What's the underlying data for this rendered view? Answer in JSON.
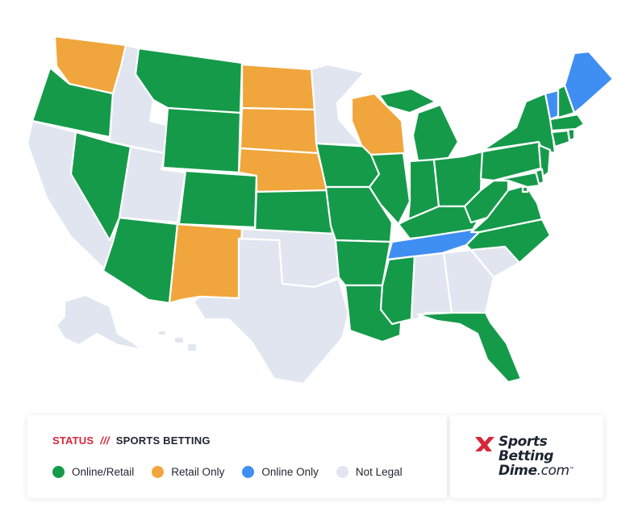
{
  "legend": {
    "status_label": "STATUS",
    "separator": "///",
    "topic_label": "SPORTS BETTING",
    "items": [
      {
        "label": "Online/Retail",
        "color": "#159a4a"
      },
      {
        "label": "Retail Only",
        "color": "#f0a63c"
      },
      {
        "label": "Online Only",
        "color": "#3f8ef2"
      },
      {
        "label": "Not Legal",
        "color": "#e0e5ef"
      }
    ]
  },
  "brand": {
    "line1": "Sports",
    "line2": "Betting",
    "line3": "Dime",
    "tld": ".com",
    "tm": "™",
    "accent_color": "#d8263b"
  },
  "map": {
    "colors": {
      "online_retail": "#159a4a",
      "retail_only": "#f0a63c",
      "online_only": "#3f8ef2",
      "not_legal": "#e0e5ef"
    },
    "states": [
      {
        "code": "WA",
        "status": "retail_only"
      },
      {
        "code": "OR",
        "status": "online_retail"
      },
      {
        "code": "CA",
        "status": "not_legal"
      },
      {
        "code": "ID",
        "status": "not_legal"
      },
      {
        "code": "NV",
        "status": "online_retail"
      },
      {
        "code": "UT",
        "status": "not_legal"
      },
      {
        "code": "AZ",
        "status": "online_retail"
      },
      {
        "code": "MT",
        "status": "online_retail"
      },
      {
        "code": "WY",
        "status": "online_retail"
      },
      {
        "code": "CO",
        "status": "online_retail"
      },
      {
        "code": "NM",
        "status": "retail_only"
      },
      {
        "code": "ND",
        "status": "retail_only"
      },
      {
        "code": "SD",
        "status": "retail_only"
      },
      {
        "code": "NE",
        "status": "retail_only"
      },
      {
        "code": "KS",
        "status": "online_retail"
      },
      {
        "code": "OK",
        "status": "not_legal"
      },
      {
        "code": "TX",
        "status": "not_legal"
      },
      {
        "code": "MN",
        "status": "not_legal"
      },
      {
        "code": "IA",
        "status": "online_retail"
      },
      {
        "code": "MO",
        "status": "online_retail"
      },
      {
        "code": "AR",
        "status": "online_retail"
      },
      {
        "code": "LA",
        "status": "online_retail"
      },
      {
        "code": "WI",
        "status": "retail_only"
      },
      {
        "code": "IL",
        "status": "online_retail"
      },
      {
        "code": "MI",
        "status": "online_retail"
      },
      {
        "code": "IN",
        "status": "online_retail"
      },
      {
        "code": "OH",
        "status": "online_retail"
      },
      {
        "code": "KY",
        "status": "online_retail"
      },
      {
        "code": "TN",
        "status": "online_only"
      },
      {
        "code": "MS",
        "status": "online_retail"
      },
      {
        "code": "AL",
        "status": "not_legal"
      },
      {
        "code": "GA",
        "status": "not_legal"
      },
      {
        "code": "FL",
        "status": "online_retail"
      },
      {
        "code": "SC",
        "status": "not_legal"
      },
      {
        "code": "NC",
        "status": "online_retail"
      },
      {
        "code": "VA",
        "status": "online_retail"
      },
      {
        "code": "WV",
        "status": "online_retail"
      },
      {
        "code": "PA",
        "status": "online_retail"
      },
      {
        "code": "NY",
        "status": "online_retail"
      },
      {
        "code": "NJ",
        "status": "online_retail"
      },
      {
        "code": "DE",
        "status": "online_retail"
      },
      {
        "code": "MD",
        "status": "online_retail"
      },
      {
        "code": "DC",
        "status": "online_retail"
      },
      {
        "code": "CT",
        "status": "online_retail"
      },
      {
        "code": "RI",
        "status": "online_retail"
      },
      {
        "code": "MA",
        "status": "online_retail"
      },
      {
        "code": "VT",
        "status": "online_only"
      },
      {
        "code": "NH",
        "status": "online_retail"
      },
      {
        "code": "ME",
        "status": "online_only"
      },
      {
        "code": "AK",
        "status": "not_legal"
      },
      {
        "code": "HI",
        "status": "not_legal"
      }
    ]
  }
}
